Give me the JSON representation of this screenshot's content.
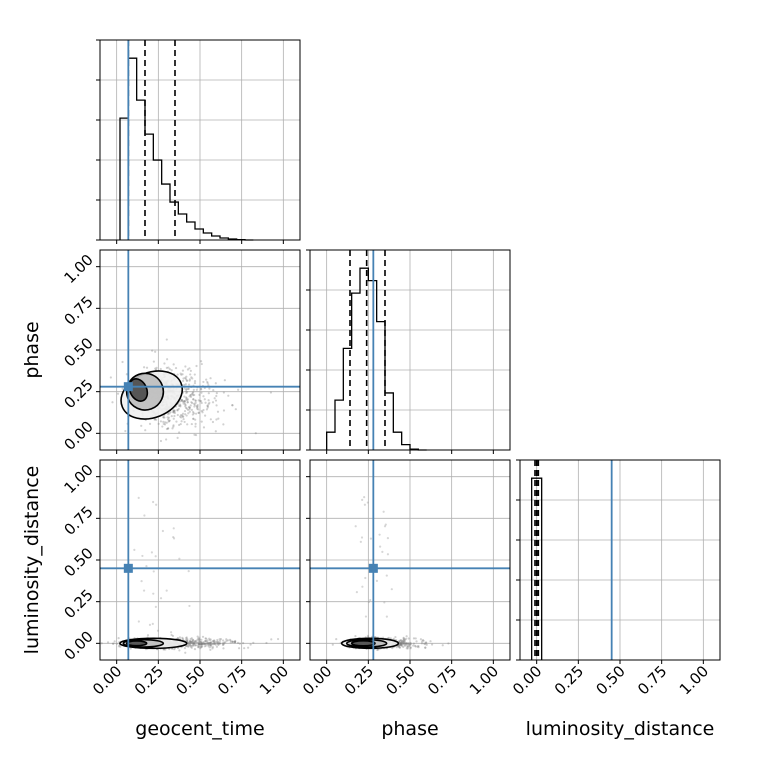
{
  "chart_data": {
    "type": "corner",
    "parameters": [
      "geocent_time",
      "phase",
      "luminosity_distance"
    ],
    "axis_range": [
      -0.1,
      1.1
    ],
    "tick_values": [
      0.0,
      0.25,
      0.5,
      0.75,
      1.0
    ],
    "tick_labels": [
      "0.00",
      "0.25",
      "0.50",
      "0.75",
      "1.00"
    ],
    "truths": {
      "geocent_time": 0.07,
      "phase": 0.28,
      "luminosity_distance": 0.45
    },
    "truth_color": "#4682b4",
    "contour_color": "#000000",
    "grid": true,
    "histograms": {
      "geocent_time": {
        "bin_edges": [
          0.02,
          0.07,
          0.12,
          0.17,
          0.22,
          0.27,
          0.32,
          0.37,
          0.42,
          0.47,
          0.52,
          0.57,
          0.62,
          0.67,
          0.72,
          0.77,
          0.82
        ],
        "counts": [
          0.61,
          0.91,
          0.7,
          0.53,
          0.4,
          0.28,
          0.19,
          0.13,
          0.09,
          0.055,
          0.035,
          0.02,
          0.01,
          0.005,
          0.002,
          0.0
        ],
        "quantiles": [
          0.07,
          0.17,
          0.35
        ],
        "yticks": [
          0.0,
          0.2,
          0.4,
          0.6,
          0.8,
          1.0
        ]
      },
      "phase": {
        "bin_edges": [
          0.0,
          0.05,
          0.1,
          0.15,
          0.2,
          0.25,
          0.3,
          0.35,
          0.4,
          0.45,
          0.5,
          0.55,
          0.6
        ],
        "counts": [
          0.1,
          0.28,
          0.57,
          0.88,
          1.02,
          0.95,
          0.72,
          0.32,
          0.1,
          0.03,
          0.005,
          0.0
        ],
        "quantiles": [
          0.14,
          0.24,
          0.35
        ],
        "yticks": [
          0.0,
          0.2,
          0.4,
          0.6,
          0.8,
          1.0
        ]
      },
      "luminosity_distance": {
        "bin_edges": [
          -0.03,
          0.03
        ],
        "counts": [
          1.0
        ],
        "quantiles": [
          -0.01,
          0.0,
          0.01
        ],
        "yticks": [
          0.0,
          0.2,
          0.4,
          0.6,
          0.8,
          1.0
        ]
      }
    },
    "density_panels": [
      {
        "x_param": "geocent_time",
        "y_param": "phase",
        "contours": [
          {
            "center": [
              0.13,
              0.26
            ],
            "radii": [
              0.05,
              0.07
            ],
            "rotate": -25
          },
          {
            "center": [
              0.17,
              0.25
            ],
            "radii": [
              0.11,
              0.11
            ],
            "rotate": -20
          },
          {
            "center": [
              0.21,
              0.23
            ],
            "radii": [
              0.19,
              0.135
            ],
            "rotate": -22
          }
        ],
        "scatter_center": [
          0.25,
          0.22
        ],
        "scatter_spread": [
          0.14,
          0.09
        ]
      },
      {
        "x_param": "geocent_time",
        "y_param": "luminosity_distance",
        "contours": [
          {
            "center": [
              0.12,
              0.0
            ],
            "radii": [
              0.06,
              0.014
            ],
            "rotate": 0
          },
          {
            "center": [
              0.16,
              0.0
            ],
            "radii": [
              0.12,
              0.022
            ],
            "rotate": 0
          },
          {
            "center": [
              0.22,
              0.0
            ],
            "radii": [
              0.2,
              0.03
            ],
            "rotate": 0
          }
        ],
        "scatter_center": [
          0.25,
          0.0
        ],
        "scatter_spread": [
          0.18,
          0.015
        ]
      },
      {
        "x_param": "phase",
        "y_param": "luminosity_distance",
        "contours": [
          {
            "center": [
              0.22,
              0.0
            ],
            "radii": [
              0.07,
              0.015
            ],
            "rotate": 0
          },
          {
            "center": [
              0.24,
              0.0
            ],
            "radii": [
              0.12,
              0.022
            ],
            "rotate": 0
          },
          {
            "center": [
              0.26,
              0.0
            ],
            "radii": [
              0.17,
              0.03
            ],
            "rotate": 0
          }
        ],
        "scatter_center": [
          0.26,
          0.0
        ],
        "scatter_spread": [
          0.11,
          0.015
        ]
      }
    ]
  }
}
